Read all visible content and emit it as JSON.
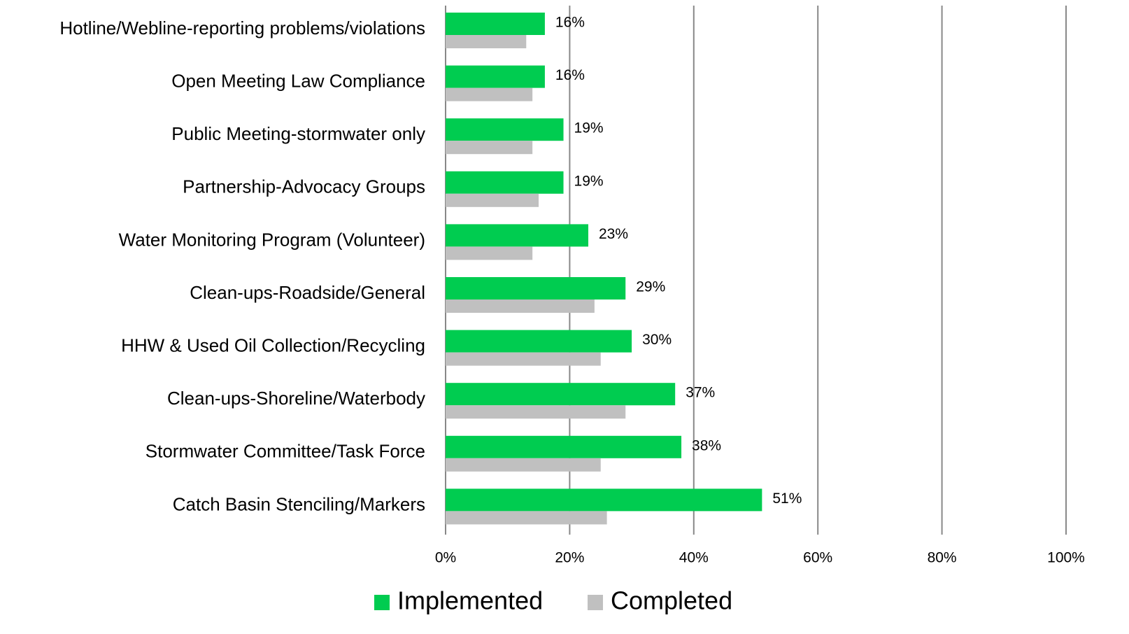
{
  "chart_data": {
    "type": "bar",
    "orientation": "horizontal",
    "categories": [
      "Hotline/Webline-reporting problems/violations",
      "Open Meeting Law Compliance",
      "Public Meeting-stormwater only",
      "Partnership-Advocacy Groups",
      "Water Monitoring Program (Volunteer)",
      "Clean-ups-Roadside/General",
      "HHW & Used Oil Collection/Recycling",
      "Clean-ups-Shoreline/Waterbody",
      "Stormwater Committee/Task Force",
      "Catch Basin Stenciling/Markers"
    ],
    "series": [
      {
        "name": "Implemented",
        "color": "#00cc50",
        "values": [
          16,
          16,
          19,
          19,
          23,
          29,
          30,
          37,
          38,
          51
        ],
        "value_labels": [
          "16%",
          "16%",
          "19%",
          "19%",
          "23%",
          "29%",
          "30%",
          "37%",
          "38%",
          "51%"
        ]
      },
      {
        "name": "Completed",
        "color": "#c0c0c0",
        "values": [
          13,
          14,
          14,
          15,
          14,
          24,
          25,
          29,
          25,
          26
        ]
      }
    ],
    "xlim": [
      0,
      100
    ],
    "xticks": [
      {
        "value": 0,
        "label": "0%"
      },
      {
        "value": 20,
        "label": "20%"
      },
      {
        "value": 40,
        "label": "40%"
      },
      {
        "value": 60,
        "label": "60%"
      },
      {
        "value": 80,
        "label": "80%"
      },
      {
        "value": 100,
        "label": "100%"
      }
    ],
    "grid": true,
    "legend": "bottom"
  }
}
